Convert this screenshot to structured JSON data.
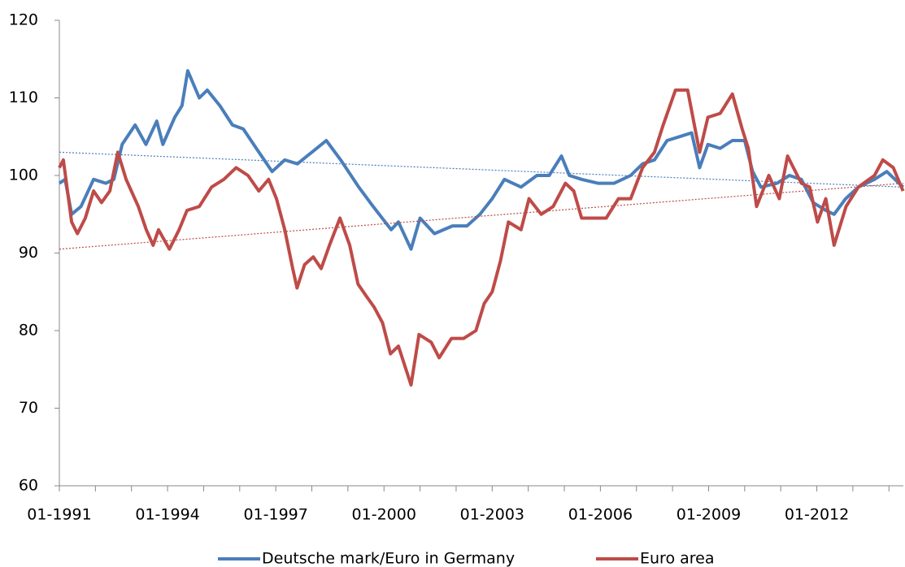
{
  "chart_data": {
    "type": "line",
    "xlim": [
      1991,
      2014.4
    ],
    "xticks": [
      {
        "value": 1991,
        "label": "01-1991"
      },
      {
        "value": 1994,
        "label": "01-1994"
      },
      {
        "value": 1997,
        "label": "01-1997"
      },
      {
        "value": 2000,
        "label": "01-2000"
      },
      {
        "value": 2003,
        "label": "01-2003"
      },
      {
        "value": 2006,
        "label": "01-2006"
      },
      {
        "value": 2009,
        "label": "01-2009"
      },
      {
        "value": 2012,
        "label": "01-2012"
      }
    ],
    "minor_xticks": [
      1992,
      1993,
      1995,
      1996,
      1998,
      1999,
      2001,
      2002,
      2004,
      2005,
      2007,
      2008,
      2010,
      2011,
      2013,
      2014
    ],
    "ylim": [
      60,
      120
    ],
    "yticks": [
      60,
      70,
      80,
      90,
      100,
      110,
      120
    ],
    "grid": false,
    "legend": "bottom",
    "series": [
      {
        "name": "Deutsche mark/Euro in Germany",
        "color": "#4a7ebb",
        "x": [
          1991,
          1991.16,
          1991.34,
          1991.6,
          1991.95,
          1992.29,
          1992.51,
          1992.74,
          1993.1,
          1993.4,
          1993.7,
          1993.87,
          1994.2,
          1994.4,
          1994.56,
          1994.88,
          1995.1,
          1995.45,
          1995.8,
          1996.1,
          1996.46,
          1996.9,
          1997.25,
          1997.6,
          1998.0,
          1998.4,
          1998.8,
          1999.3,
          1999.7,
          2000.2,
          2000.4,
          2000.75,
          2001.0,
          2001.4,
          2001.9,
          2002.3,
          2002.66,
          2003.0,
          2003.34,
          2003.8,
          2004.24,
          2004.58,
          2004.92,
          2005.14,
          2005.48,
          2005.93,
          2006.38,
          2006.84,
          2007.17,
          2007.5,
          2007.85,
          2008.19,
          2008.53,
          2008.75,
          2008.98,
          2009.32,
          2009.66,
          2010.0,
          2010.22,
          2010.45,
          2010.9,
          2011.24,
          2011.57,
          2011.9,
          2012.25,
          2012.48,
          2012.8,
          2013.15,
          2013.6,
          2013.94,
          2014.39
        ],
        "values": [
          99,
          99.5,
          95,
          96,
          99.5,
          99,
          99.5,
          104,
          106.5,
          104,
          107,
          104,
          107.5,
          109,
          113.5,
          110,
          111,
          109,
          106.5,
          106,
          103.5,
          100.5,
          102,
          101.5,
          103,
          104.5,
          102,
          98.5,
          96,
          93,
          94,
          90.5,
          94.5,
          92.5,
          93.5,
          93.5,
          95,
          97,
          99.5,
          98.5,
          100,
          100,
          102.5,
          100,
          99.5,
          99,
          99,
          100,
          101.5,
          102,
          104.5,
          105,
          105.5,
          101,
          104,
          103.5,
          104.5,
          104.5,
          100.5,
          98.5,
          99,
          100,
          99.5,
          96.5,
          95.5,
          95,
          97,
          98.5,
          99.5,
          100.5,
          98.5
        ],
        "trend": [
          103,
          98.5
        ]
      },
      {
        "name": "Euro area",
        "color": "#be4b48",
        "x": [
          1991,
          1991.11,
          1991.34,
          1991.5,
          1991.72,
          1991.95,
          1992.17,
          1992.4,
          1992.62,
          1992.85,
          1993.19,
          1993.41,
          1993.6,
          1993.75,
          1994.05,
          1994.32,
          1994.54,
          1994.88,
          1995.22,
          1995.56,
          1995.9,
          1996.23,
          1996.53,
          1996.8,
          1997.02,
          1997.25,
          1997.47,
          1997.59,
          1997.8,
          1998.04,
          1998.26,
          1998.49,
          1998.78,
          1999.05,
          1999.28,
          1999.5,
          1999.73,
          1999.96,
          2000.18,
          2000.4,
          2000.75,
          2000.97,
          2001.31,
          2001.53,
          2001.87,
          2002.21,
          2002.55,
          2002.78,
          2003.0,
          2003.23,
          2003.45,
          2003.8,
          2004.02,
          2004.36,
          2004.69,
          2005.03,
          2005.26,
          2005.48,
          2005.82,
          2006.16,
          2006.5,
          2006.84,
          2007.17,
          2007.5,
          2007.74,
          2008.08,
          2008.42,
          2008.75,
          2008.98,
          2009.32,
          2009.66,
          2009.93,
          2010.1,
          2010.33,
          2010.67,
          2010.96,
          2011.19,
          2011.57,
          2011.8,
          2012.02,
          2012.25,
          2012.48,
          2012.81,
          2013.15,
          2013.6,
          2013.83,
          2014.12,
          2014.39
        ],
        "values": [
          101,
          102,
          94,
          92.5,
          94.5,
          98,
          96.5,
          98,
          103,
          99.5,
          96,
          93,
          91,
          93,
          90.5,
          93,
          95.5,
          96,
          98.5,
          99.5,
          101,
          100,
          98,
          99.5,
          97,
          93,
          88,
          85.5,
          88.5,
          89.5,
          88,
          91,
          94.5,
          91,
          86,
          84.5,
          83,
          81,
          77,
          78,
          73,
          79.5,
          78.5,
          76.5,
          79,
          79,
          80,
          83.5,
          85,
          89,
          94,
          93,
          97,
          95,
          96,
          99,
          98,
          94.5,
          94.5,
          94.5,
          97,
          97,
          101,
          103,
          106.5,
          111,
          111,
          103,
          107.5,
          108,
          110.5,
          106,
          103.5,
          96,
          100,
          97,
          102.5,
          99,
          98.5,
          94,
          97,
          91,
          96,
          98.5,
          100,
          102,
          101,
          98
        ],
        "trend": [
          90.5,
          99
        ]
      }
    ]
  }
}
